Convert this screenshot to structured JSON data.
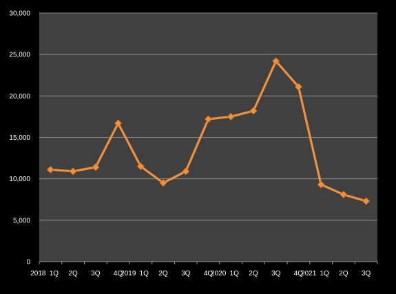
{
  "chart_data": {
    "type": "line",
    "categories": [
      "2018 1Q",
      "2Q",
      "3Q",
      "4Q",
      "2019 1Q",
      "2Q",
      "3Q",
      "4Q",
      "2020 1Q",
      "2Q",
      "3Q",
      "4Q",
      "2021 1Q",
      "2Q",
      "3Q"
    ],
    "x_tick_labels": [
      "2018",
      "1Q",
      "2Q",
      "3Q",
      "4Q",
      "2019",
      "1Q",
      "2Q",
      "3Q",
      "4Q",
      "2020",
      "1Q",
      "2Q",
      "3Q",
      "4Q",
      "2021",
      "1Q",
      "2Q",
      "3Q"
    ],
    "series": [
      {
        "values": [
          11100,
          10900,
          11400,
          16700,
          11500,
          9500,
          10900,
          17200,
          17500,
          18200,
          24200,
          21100,
          9300,
          8100,
          7300
        ]
      }
    ],
    "ylim": [
      0,
      30000
    ],
    "y_ticks": [
      0,
      5000,
      10000,
      15000,
      20000,
      25000,
      30000
    ],
    "y_tick_labels": [
      "0",
      "5,000",
      "10,000",
      "15,000",
      "20,000",
      "25,000",
      "30,000"
    ],
    "grid": true,
    "colors": {
      "plot_background": "#404040",
      "page_background": "#000000",
      "line": "#f0913c",
      "marker": "#f0913c",
      "grid": "#8c8c8c"
    }
  }
}
